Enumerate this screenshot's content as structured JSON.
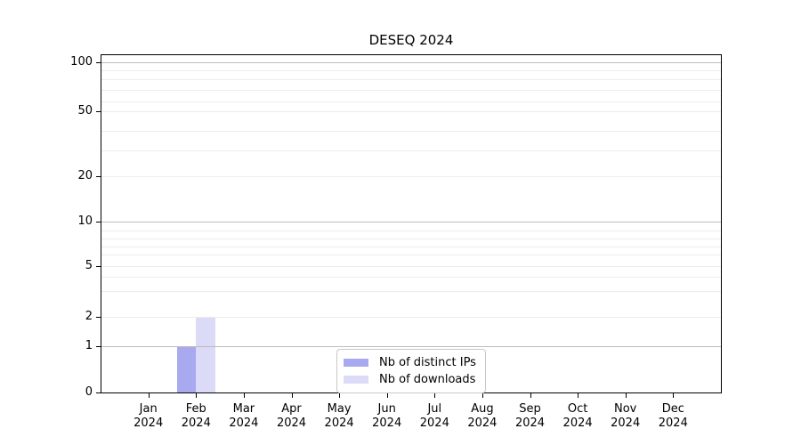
{
  "title": "DESEQ 2024",
  "chart_data": {
    "type": "bar",
    "title": "DESEQ 2024",
    "categories": [
      "Jan",
      "Feb",
      "Mar",
      "Apr",
      "May",
      "Jun",
      "Jul",
      "Aug",
      "Sep",
      "Oct",
      "Nov",
      "Dec"
    ],
    "year_label": "2024",
    "series": [
      {
        "name": "Nb of distinct IPs",
        "color": "#a9a9f0",
        "values": [
          0,
          1,
          0,
          0,
          0,
          0,
          0,
          0,
          0,
          0,
          0,
          0
        ]
      },
      {
        "name": "Nb of downloads",
        "color": "#dbdbf7",
        "values": [
          0,
          2,
          0,
          0,
          0,
          0,
          0,
          0,
          0,
          0,
          0,
          0
        ]
      }
    ],
    "xlabel": "",
    "ylabel": "",
    "yticks": [
      0,
      1,
      2,
      5,
      10,
      20,
      50,
      100
    ],
    "major_gridlines": [
      1,
      10,
      100
    ],
    "minor_gridlines": [
      2,
      3,
      4,
      5,
      6,
      7,
      8,
      9,
      20,
      30,
      40,
      50,
      60,
      70,
      80,
      90
    ],
    "ylim": [
      0,
      112
    ],
    "scale": "log-like (0 anchored at baseline)",
    "grid": true,
    "legend": {
      "position": "inside-bottom-center",
      "labels": [
        "Nb of distinct IPs",
        "Nb of downloads"
      ]
    }
  },
  "colors": {
    "bar_distinct_ips": "#a9a9f0",
    "bar_downloads": "#dbdbf7",
    "major_grid": "#bcbcbc",
    "minor_grid": "#ececec",
    "axis": "#000000",
    "legend_border": "#c8c8c8",
    "background": "#ffffff",
    "text": "#000000"
  }
}
